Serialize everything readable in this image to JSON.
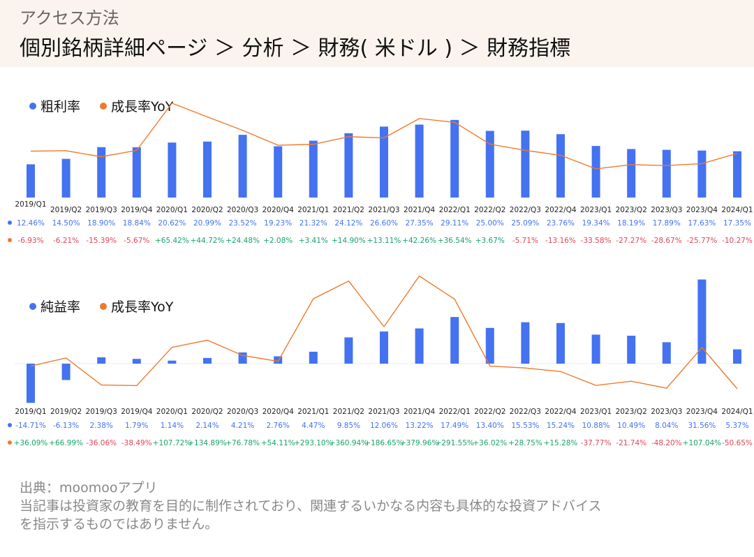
{
  "header": {
    "subtitle": "アクセス方法",
    "path": "個別銘柄詳細ページ ＞ 分析 ＞ 財務( 米ドル ) ＞ 財務指標"
  },
  "colors": {
    "bar": "#4472f0",
    "line": "#f07a2a",
    "positive": "#1aa36a",
    "negative": "#e0455a",
    "rate_text": "#4472f0"
  },
  "chart_data": [
    {
      "type": "bar",
      "legend": [
        "粗利率",
        "成長率YoY"
      ],
      "categories": [
        "2019/Q1",
        "2019/Q2",
        "2019/Q3",
        "2019/Q4",
        "2020/Q1",
        "2020/Q2",
        "2020/Q3",
        "2020/Q4",
        "2021/Q1",
        "2021/Q2",
        "2021/Q3",
        "2021/Q4",
        "2022/Q1",
        "2022/Q2",
        "2022/Q3",
        "2022/Q4",
        "2023/Q1",
        "2023/Q2",
        "2023/Q3",
        "2023/Q4",
        "2024/Q1"
      ],
      "series": [
        {
          "name": "粗利率",
          "type": "bar",
          "values": [
            12.46,
            14.5,
            18.9,
            18.84,
            20.62,
            20.99,
            23.52,
            19.23,
            21.32,
            24.12,
            26.6,
            27.35,
            29.11,
            25.0,
            25.09,
            23.76,
            19.34,
            18.19,
            17.89,
            17.63,
            17.35
          ],
          "labels": [
            "12.46%",
            "14.50%",
            "18.90%",
            "18.84%",
            "20.62%",
            "20.99%",
            "23.52%",
            "19.23%",
            "21.32%",
            "24.12%",
            "26.60%",
            "27.35%",
            "29.11%",
            "25.00%",
            "25.09%",
            "23.76%",
            "19.34%",
            "18.19%",
            "17.89%",
            "17.63%",
            "17.35%"
          ]
        },
        {
          "name": "成長率YoY",
          "type": "line",
          "values": [
            -6.93,
            -6.21,
            -15.39,
            -5.67,
            65.42,
            44.72,
            24.48,
            2.08,
            3.41,
            14.9,
            13.11,
            42.26,
            36.54,
            3.67,
            -5.71,
            -13.16,
            -33.58,
            -27.27,
            -28.67,
            -25.77,
            -10.27
          ],
          "labels": [
            "-6.93%",
            "-6.21%",
            "-15.39%",
            "-5.67%",
            "+65.42%",
            "+44.72%",
            "+24.48%",
            "+2.08%",
            "+3.41%",
            "+14.90%",
            "+13.11%",
            "+42.26%",
            "+36.54%",
            "+3.67%",
            "-5.71%",
            "-13.16%",
            "-33.58%",
            "-27.27%",
            "-28.67%",
            "-25.77%",
            "-10.27%"
          ]
        }
      ]
    },
    {
      "type": "bar",
      "legend": [
        "純益率",
        "成長率YoY"
      ],
      "categories": [
        "2019/Q1",
        "2019/Q2",
        "2019/Q3",
        "2019/Q4",
        "2020/Q1",
        "2020/Q2",
        "2020/Q3",
        "2020/Q4",
        "2021/Q1",
        "2021/Q2",
        "2021/Q3",
        "2021/Q4",
        "2022/Q1",
        "2022/Q2",
        "2022/Q3",
        "2022/Q4",
        "2023/Q1",
        "2023/Q2",
        "2023/Q3",
        "2023/Q4",
        "2024/Q1"
      ],
      "series": [
        {
          "name": "純益率",
          "type": "bar",
          "values": [
            -14.71,
            -6.13,
            2.38,
            1.79,
            1.14,
            2.14,
            4.21,
            2.76,
            4.47,
            9.85,
            12.06,
            13.22,
            17.49,
            13.4,
            15.53,
            15.24,
            10.88,
            10.49,
            8.04,
            31.56,
            5.37
          ],
          "labels": [
            "-14.71%",
            "-6.13%",
            "2.38%",
            "1.79%",
            "1.14%",
            "2.14%",
            "4.21%",
            "2.76%",
            "4.47%",
            "9.85%",
            "12.06%",
            "13.22%",
            "17.49%",
            "13.40%",
            "15.53%",
            "15.24%",
            "10.88%",
            "10.49%",
            "8.04%",
            "31.56%",
            "5.37%"
          ]
        },
        {
          "name": "成長率YoY",
          "type": "line",
          "values": [
            36.09,
            66.99,
            -36.06,
            -38.49,
            107.72,
            134.89,
            76.78,
            54.11,
            293.1,
            360.94,
            186.65,
            379.96,
            291.55,
            36.02,
            28.75,
            15.28,
            -37.77,
            -21.74,
            -48.2,
            107.04,
            -50.65
          ],
          "labels": [
            "+36.09%",
            "+66.99%",
            "-36.06%",
            "-38.49%",
            "+107.72%",
            "+134.89%",
            "+76.78%",
            "+54.11%",
            "+293.10%",
            "+360.94%",
            "+186.65%",
            "+379.96%",
            "+291.55%",
            "+36.02%",
            "+28.75%",
            "+15.28%",
            "-37.77%",
            "-21.74%",
            "-48.20%",
            "+107.04%",
            "-50.65%"
          ]
        }
      ]
    }
  ],
  "footer": {
    "source": "出典：moomooアプリ",
    "disclaimer_1": "当記事は投資家の教育を目的に制作されており、関連するいかなる内容も具体的な投資アドバイス",
    "disclaimer_2": "を指示するものではありません。"
  }
}
